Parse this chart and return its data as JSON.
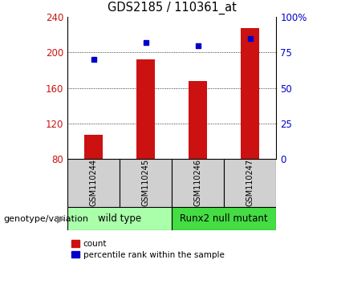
{
  "title": "GDS2185 / 110361_at",
  "samples": [
    "GSM110244",
    "GSM110245",
    "GSM110246",
    "GSM110247"
  ],
  "counts": [
    107,
    192,
    168,
    228
  ],
  "percentiles": [
    70,
    82,
    80,
    85
  ],
  "ylim_left": [
    80,
    240
  ],
  "ylim_right": [
    0,
    100
  ],
  "yticks_left": [
    80,
    120,
    160,
    200,
    240
  ],
  "yticks_right": [
    0,
    25,
    50,
    75,
    100
  ],
  "ytick_labels_right": [
    "0",
    "25",
    "50",
    "75",
    "100%"
  ],
  "bar_color": "#cc1111",
  "dot_color": "#0000cc",
  "bar_width": 0.35,
  "groups": [
    {
      "label": "wild type",
      "samples": [
        0,
        1
      ],
      "color": "#aaffaa"
    },
    {
      "label": "Runx2 null mutant",
      "samples": [
        2,
        3
      ],
      "color": "#44dd44"
    }
  ],
  "legend_count_label": "count",
  "legend_pct_label": "percentile rank within the sample",
  "genotype_label": "genotype/variation",
  "title_fontsize": 10.5,
  "tick_label_fontsize": 8.5,
  "sample_fontsize": 7,
  "group_fontsize": 8.5,
  "legend_fontsize": 7.5,
  "genotype_fontsize": 8
}
